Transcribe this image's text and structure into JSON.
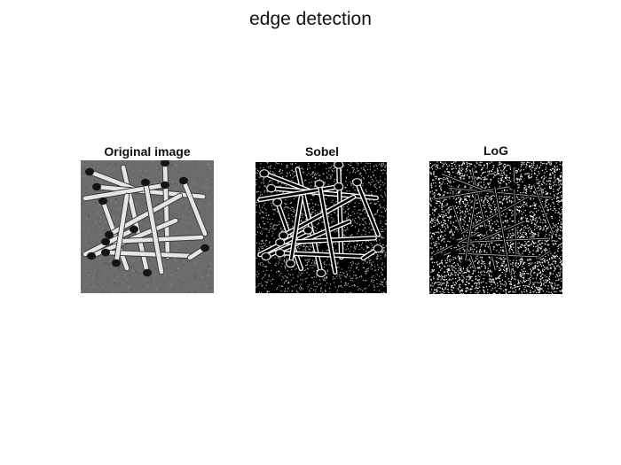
{
  "figure": {
    "title": "edge detection"
  },
  "panels": [
    {
      "id": "original",
      "title": "Original image"
    },
    {
      "id": "sobel",
      "title": "Sobel"
    },
    {
      "id": "log",
      "title": "LoG"
    }
  ],
  "image_content": {
    "subject": "scattered wooden matchsticks with dark heads on a textured grey background",
    "colormap": "grayscale"
  }
}
